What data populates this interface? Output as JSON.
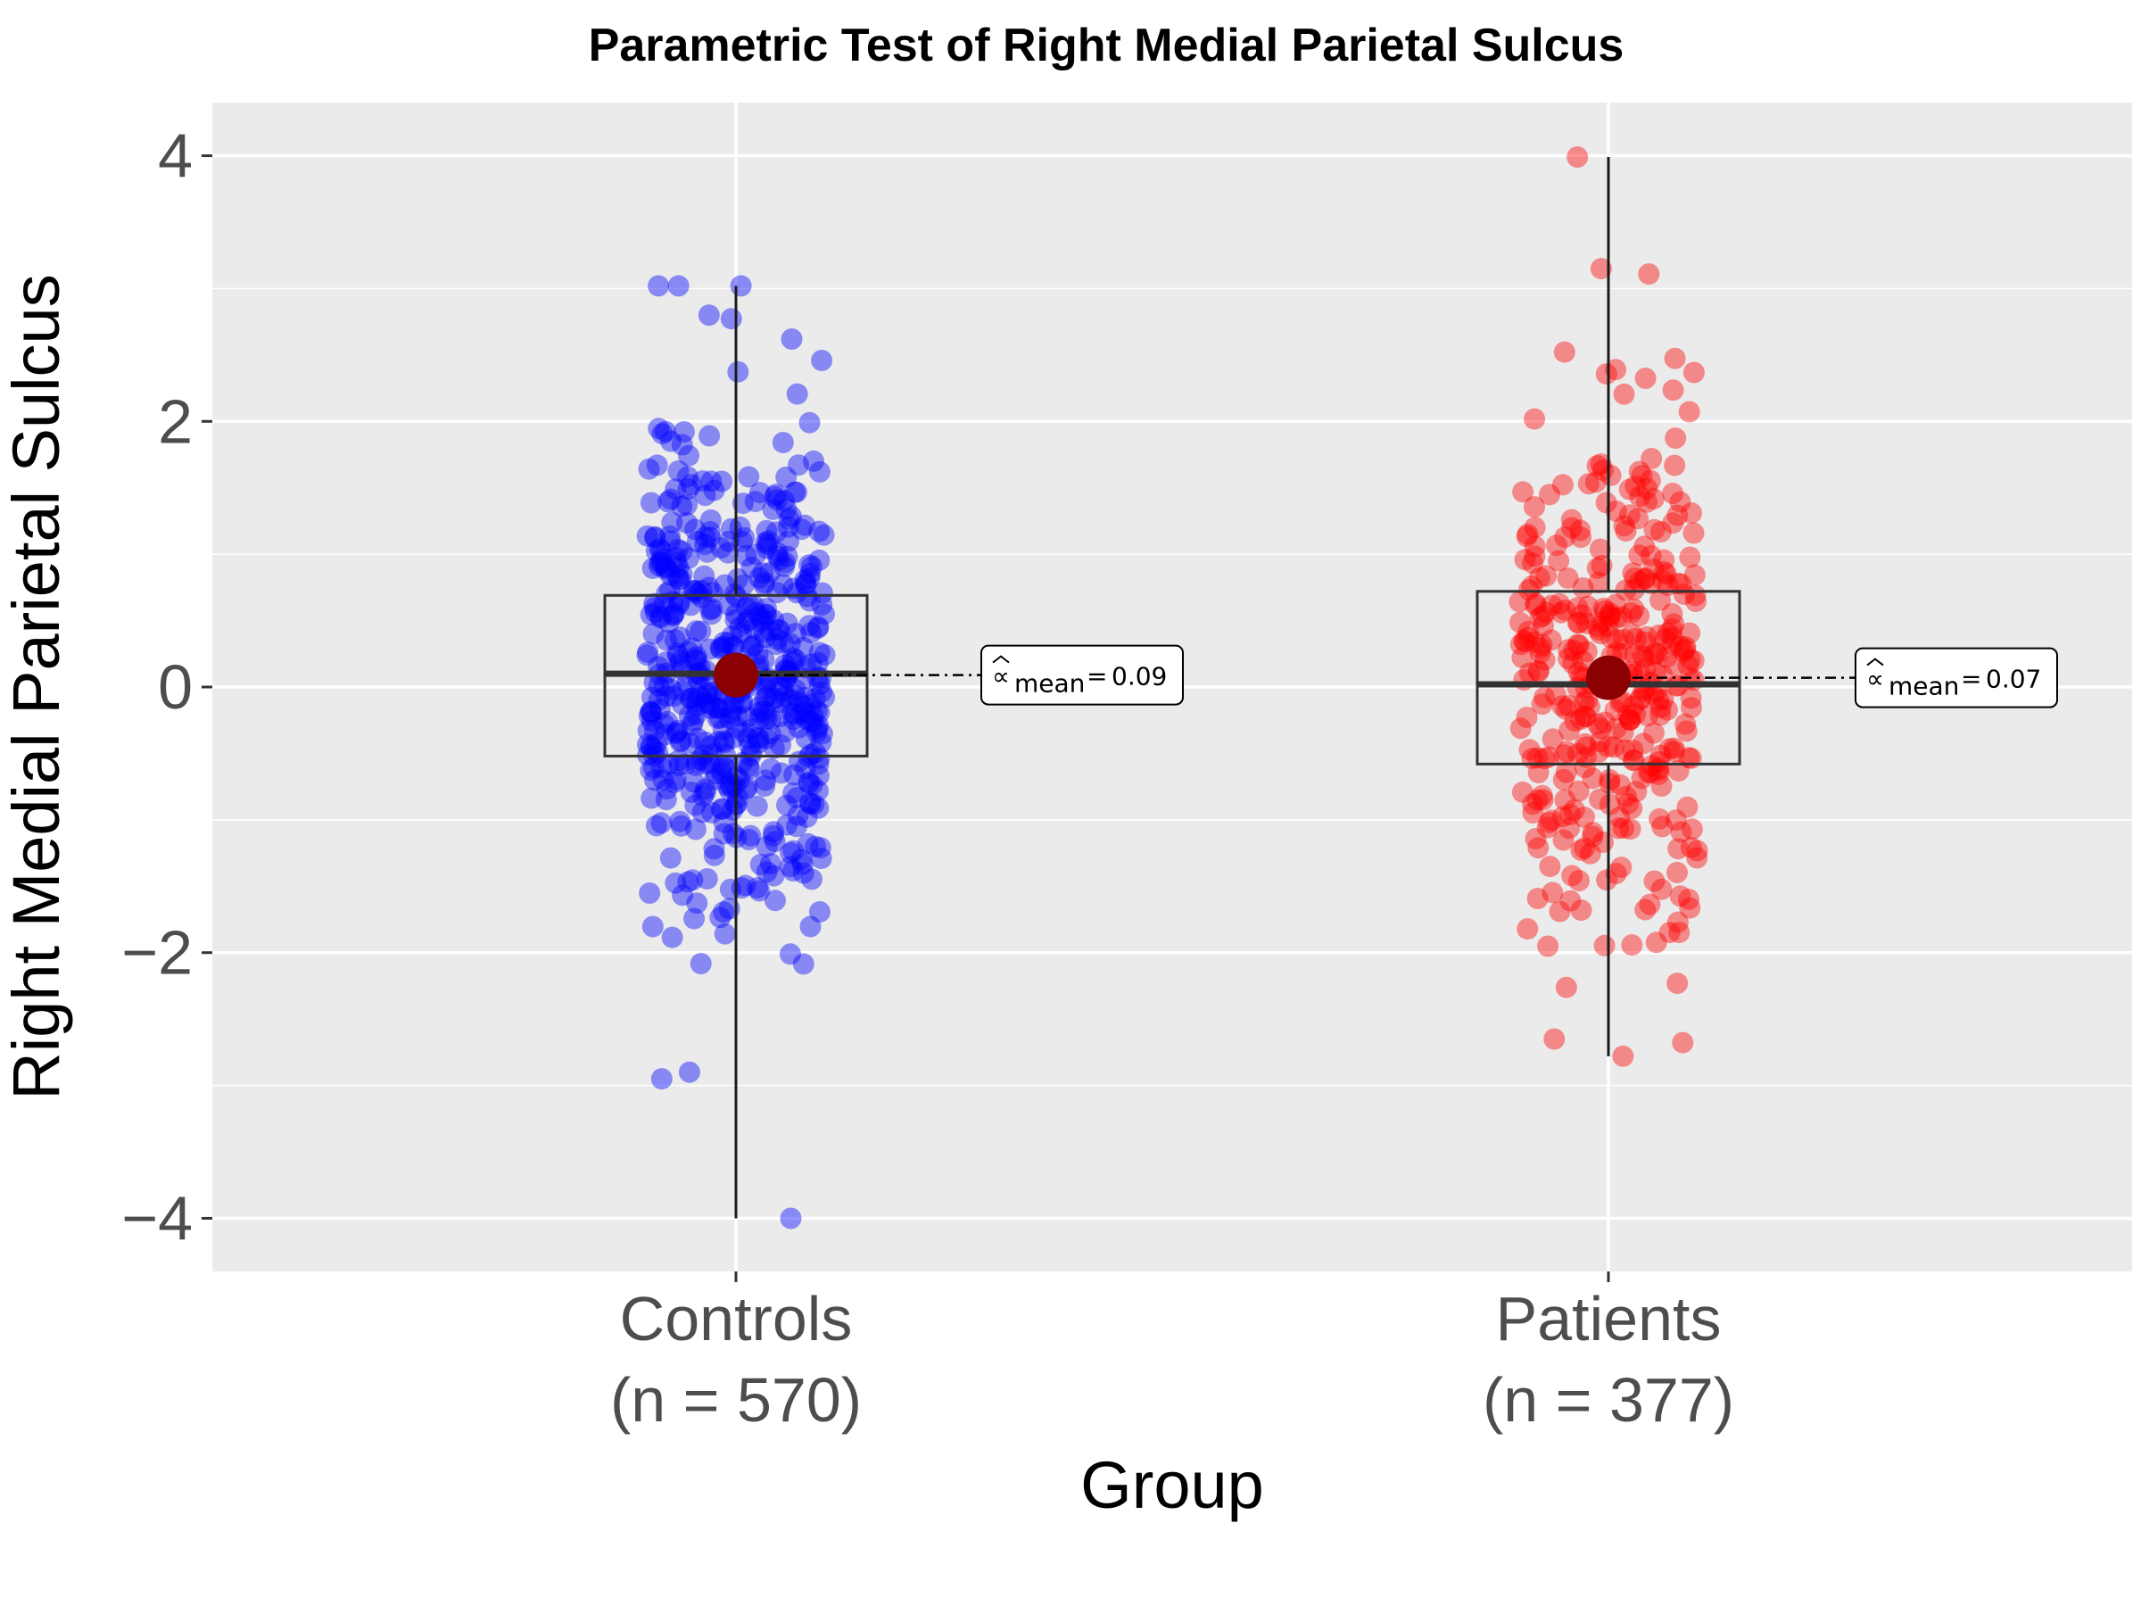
{
  "chart_data": {
    "type": "box",
    "title": "Parametric Test of Right Medial Parietal Sulcus",
    "xlabel": "Group",
    "ylabel": "Right Medial Parietal Sulcus",
    "ylim": [
      -4.4,
      4.4
    ],
    "yticks": [
      -4,
      -2,
      0,
      2,
      4
    ],
    "ytick_labels": [
      "−4",
      "−2",
      "0",
      "2",
      "4"
    ],
    "grid": true,
    "categories": [
      {
        "label": "Controls",
        "n_label": "(n = 570)",
        "n": 570,
        "color": "#0000ff"
      },
      {
        "label": "Patients",
        "n_label": "(n = 377)",
        "n": 377,
        "color": "#ff0000"
      }
    ],
    "series": [
      {
        "category": "Controls",
        "box": {
          "min": -4.0,
          "q1": -0.52,
          "median": 0.1,
          "q3": 0.69,
          "max": 3.02
        },
        "mean": 0.09,
        "mean_label": "0.09",
        "outliers": [
          -4.0,
          3.02,
          2.8,
          2.62
        ]
      },
      {
        "category": "Patients",
        "box": {
          "min": -2.78,
          "q1": -0.58,
          "median": 0.02,
          "q3": 0.72,
          "max": 3.99
        },
        "mean": 0.07,
        "mean_label": "0.07",
        "outliers": [
          3.99,
          3.15,
          -2.78,
          -2.65
        ]
      }
    ],
    "annotation_symbol": "∝",
    "annotation_subscript": "mean",
    "annotation_eq": "=",
    "mean_point_color": "#8b0000"
  }
}
